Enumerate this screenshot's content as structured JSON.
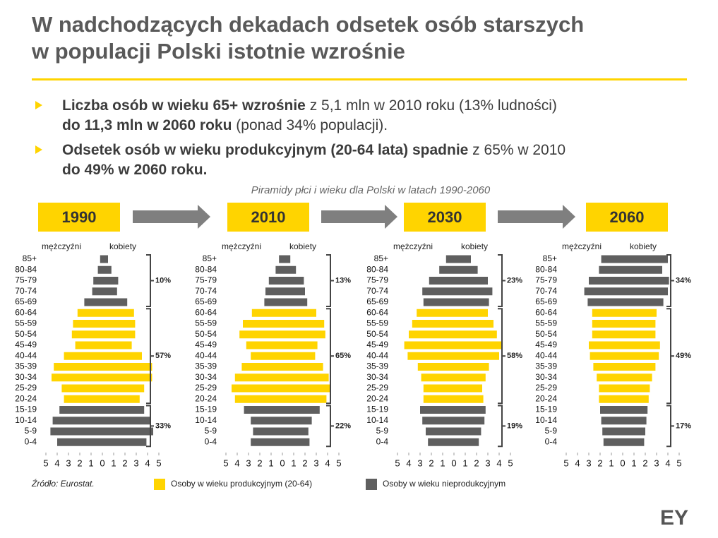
{
  "title_lines": [
    "W nadchodzących dekadach odsetek osób starszych",
    "w populacji Polski istotnie wzrośnie"
  ],
  "bullets": [
    [
      [
        {
          "text": "Liczba osób w wieku 65+ wzrośnie",
          "bold": true
        },
        {
          "text": " z 5,1 mln w 2010 roku (13% ludności)",
          "bold": false
        }
      ],
      [
        {
          "text": "do 11,3 mln w 2060 roku",
          "bold": true
        },
        {
          "text": " (ponad 34% populacji).",
          "bold": false
        }
      ]
    ],
    [
      [
        {
          "text": "Odsetek osób w wieku produkcyjnym (20-64 lata) spadnie",
          "bold": true
        },
        {
          "text": " z 65% w 2010",
          "bold": false
        }
      ],
      [
        {
          "text": "do 49% w 2060 roku.",
          "bold": true
        }
      ]
    ]
  ],
  "subtitle": "Piramidy płci i wieku dla Polski w latach 1990-2060",
  "source": "Źródło: Eurostat.",
  "legend": [
    {
      "label": "Osoby w wieku produkcyjnym (20-64)",
      "color": "#ffd400"
    },
    {
      "label": "Osoby w wieku nieprodukcyjnym",
      "color": "#5f5f5f"
    }
  ],
  "logo": "EY",
  "chart_data": [
    {
      "type": "pyramid",
      "title": "1990",
      "categories": [
        "85+",
        "80-84",
        "75-79",
        "70-74",
        "65-69",
        "60-64",
        "55-59",
        "50-54",
        "45-49",
        "40-44",
        "35-39",
        "30-34",
        "25-29",
        "20-24",
        "15-19",
        "10-14",
        "5-9",
        "0-4"
      ],
      "series": [
        {
          "name": "mężczyźni",
          "values": [
            0.2,
            0.4,
            0.8,
            0.9,
            1.6,
            2.2,
            2.6,
            2.7,
            2.4,
            3.4,
            4.3,
            4.5,
            3.6,
            3.4,
            3.8,
            4.4,
            4.6,
            4.0
          ]
        },
        {
          "name": "kobiety",
          "values": [
            0.5,
            0.8,
            1.4,
            1.3,
            2.2,
            2.8,
            2.9,
            2.9,
            2.6,
            3.5,
            4.4,
            4.4,
            3.7,
            3.3,
            3.7,
            4.2,
            4.5,
            3.9
          ]
        }
      ],
      "colors": [
        "#5f5f5f",
        "#5f5f5f",
        "#5f5f5f",
        "#5f5f5f",
        "#5f5f5f",
        "#ffd400",
        "#ffd400",
        "#ffd400",
        "#ffd400",
        "#ffd400",
        "#ffd400",
        "#ffd400",
        "#ffd400",
        "#ffd400",
        "#5f5f5f",
        "#5f5f5f",
        "#5f5f5f",
        "#5f5f5f"
      ],
      "group_labels": [
        "10%",
        "57%",
        "33%"
      ],
      "xlim": [
        -5,
        5
      ],
      "xticks": [
        {
          "value": -5,
          "label": "5"
        },
        {
          "value": -4,
          "label": "4"
        },
        {
          "value": -3,
          "label": "3"
        },
        {
          "value": -2,
          "label": "2"
        },
        {
          "value": -1,
          "label": "1"
        },
        0,
        1,
        2,
        3,
        4,
        5
      ]
    },
    {
      "type": "pyramid",
      "title": "2010",
      "categories": [
        "85+",
        "80-84",
        "75-79",
        "70-74",
        "65-69",
        "60-64",
        "55-59",
        "50-54",
        "45-49",
        "40-44",
        "35-39",
        "30-34",
        "25-29",
        "20-24",
        "15-19",
        "10-14",
        "5-9",
        "0-4"
      ],
      "series": [
        {
          "name": "mężczyźni",
          "values": [
            0.3,
            0.6,
            1.2,
            1.5,
            1.6,
            2.7,
            3.5,
            3.8,
            3.2,
            2.8,
            3.6,
            4.2,
            4.5,
            4.2,
            3.4,
            2.8,
            2.6,
            2.8
          ]
        },
        {
          "name": "kobiety",
          "values": [
            0.7,
            1.2,
            1.9,
            2.0,
            2.2,
            3.0,
            3.7,
            3.8,
            3.1,
            2.9,
            3.6,
            4.1,
            4.2,
            3.9,
            3.3,
            2.6,
            2.3,
            2.4
          ]
        }
      ],
      "colors": [
        "#5f5f5f",
        "#5f5f5f",
        "#5f5f5f",
        "#5f5f5f",
        "#5f5f5f",
        "#ffd400",
        "#ffd400",
        "#ffd400",
        "#ffd400",
        "#ffd400",
        "#ffd400",
        "#ffd400",
        "#ffd400",
        "#ffd400",
        "#5f5f5f",
        "#5f5f5f",
        "#5f5f5f",
        "#5f5f5f"
      ],
      "group_labels": [
        "13%",
        "65%",
        "22%"
      ],
      "xlim": [
        -5,
        5
      ],
      "xticks": [
        {
          "value": -5,
          "label": "5"
        },
        {
          "value": -4,
          "label": "4"
        },
        {
          "value": -3,
          "label": "3"
        },
        {
          "value": -2,
          "label": "2"
        },
        {
          "value": -1,
          "label": "1"
        },
        0,
        1,
        2,
        3,
        4,
        5
      ]
    },
    {
      "type": "pyramid",
      "title": "2030",
      "categories": [
        "85+",
        "80-84",
        "75-79",
        "70-74",
        "65-69",
        "60-64",
        "55-59",
        "50-54",
        "45-49",
        "40-44",
        "35-39",
        "30-34",
        "25-29",
        "20-24",
        "15-19",
        "10-14",
        "5-9",
        "0-4"
      ],
      "series": [
        {
          "name": "mężczyźni",
          "values": [
            0.7,
            1.3,
            2.2,
            2.8,
            2.7,
            3.3,
            3.7,
            4.0,
            4.4,
            4.1,
            3.2,
            2.9,
            2.7,
            2.7,
            3.0,
            2.8,
            2.5,
            2.3
          ]
        },
        {
          "name": "kobiety",
          "values": [
            1.5,
            2.1,
            3.0,
            3.4,
            3.1,
            3.0,
            3.5,
            3.8,
            4.2,
            4.0,
            3.1,
            2.8,
            2.5,
            2.6,
            2.8,
            2.7,
            2.4,
            2.2
          ]
        }
      ],
      "colors": [
        "#5f5f5f",
        "#5f5f5f",
        "#5f5f5f",
        "#5f5f5f",
        "#5f5f5f",
        "#ffd400",
        "#ffd400",
        "#ffd400",
        "#ffd400",
        "#ffd400",
        "#ffd400",
        "#ffd400",
        "#ffd400",
        "#ffd400",
        "#5f5f5f",
        "#5f5f5f",
        "#5f5f5f",
        "#5f5f5f"
      ],
      "group_labels": [
        "23%",
        "58%",
        "19%"
      ],
      "xlim": [
        -5,
        5
      ],
      "xticks": [
        {
          "value": -5,
          "label": "5"
        },
        {
          "value": -4,
          "label": "4"
        },
        {
          "value": -3,
          "label": "3"
        },
        {
          "value": -2,
          "label": "2"
        },
        {
          "value": -1,
          "label": "1"
        },
        0,
        1,
        2,
        3,
        4,
        5
      ]
    },
    {
      "type": "pyramid",
      "title": "2060",
      "categories": [
        "85+",
        "80-84",
        "75-79",
        "70-74",
        "65-69",
        "60-64",
        "55-59",
        "50-54",
        "45-49",
        "40-44",
        "35-39",
        "30-34",
        "25-29",
        "20-24",
        "15-19",
        "10-14",
        "5-9",
        "0-4"
      ],
      "series": [
        {
          "name": "mężczyźni",
          "values": [
            1.9,
            2.1,
            3.0,
            3.4,
            3.1,
            2.7,
            2.7,
            2.7,
            3.0,
            2.9,
            2.6,
            2.3,
            2.1,
            2.1,
            2.0,
            1.9,
            1.8,
            1.7
          ]
        },
        {
          "name": "kobiety",
          "values": [
            4.0,
            3.5,
            4.1,
            4.0,
            3.6,
            3.0,
            2.9,
            2.9,
            3.3,
            3.2,
            2.9,
            2.6,
            2.4,
            2.3,
            2.2,
            2.1,
            2.0,
            1.9
          ]
        }
      ],
      "colors": [
        "#5f5f5f",
        "#5f5f5f",
        "#5f5f5f",
        "#5f5f5f",
        "#5f5f5f",
        "#ffd400",
        "#ffd400",
        "#ffd400",
        "#ffd400",
        "#ffd400",
        "#ffd400",
        "#ffd400",
        "#ffd400",
        "#ffd400",
        "#5f5f5f",
        "#5f5f5f",
        "#5f5f5f",
        "#5f5f5f"
      ],
      "group_labels": [
        "34%",
        "49%",
        "17%"
      ],
      "xlim": [
        -5,
        5
      ],
      "xticks": [
        {
          "value": -5,
          "label": "5"
        },
        {
          "value": -4,
          "label": "4"
        },
        {
          "value": -3,
          "label": "3"
        },
        {
          "value": -2,
          "label": "2"
        },
        {
          "value": -1,
          "label": "1"
        },
        0,
        1,
        2,
        3,
        4,
        5
      ]
    }
  ]
}
